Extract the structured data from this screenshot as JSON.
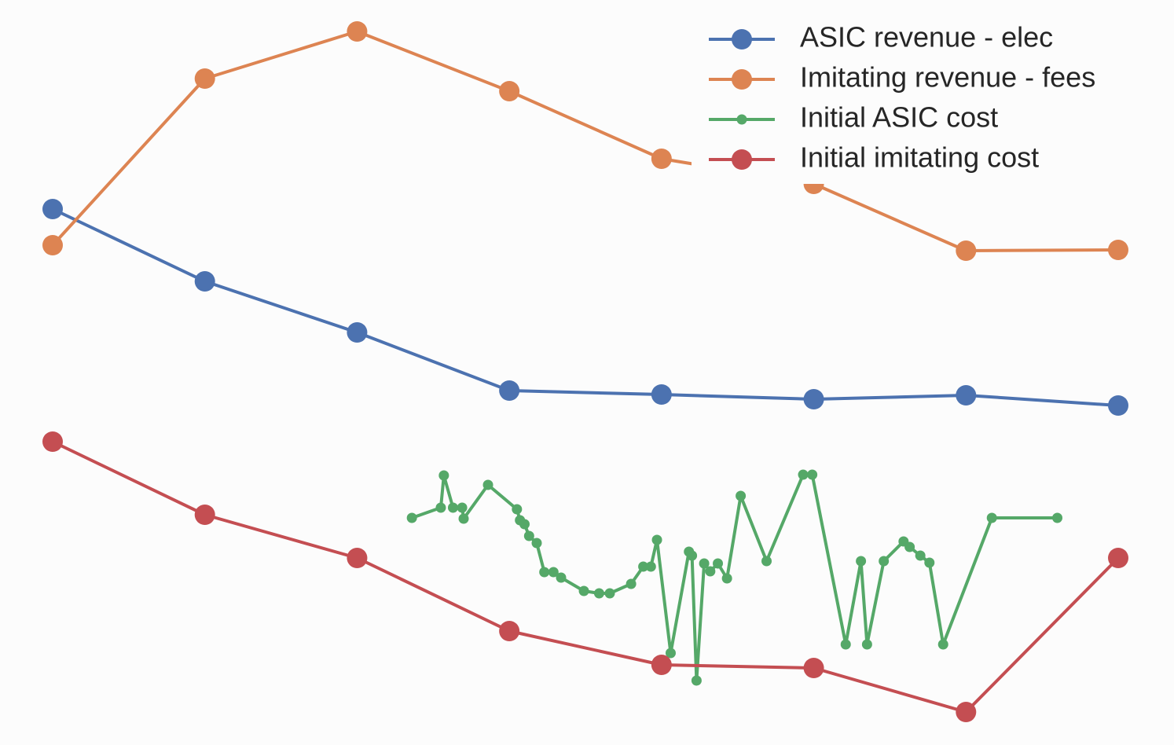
{
  "chart_data": {
    "type": "line",
    "x": [
      0,
      1,
      2,
      3,
      4,
      5,
      6,
      7
    ],
    "xlim": [
      0,
      7
    ],
    "ylim": [
      0,
      948
    ],
    "legend": "upper right",
    "grid": false,
    "series": [
      {
        "name": "ASIC revenue - elec",
        "color": "#4c72b0",
        "values": [
          682,
          590,
          525,
          451,
          446,
          440,
          445,
          432
        ]
      },
      {
        "name": "Imitating revenue - fees",
        "color": "#dd8452",
        "values": [
          636,
          848,
          908,
          832,
          746,
          714,
          629,
          630
        ]
      },
      {
        "name": "Initial ASIC cost",
        "color": "#55a868",
        "x": [
          2.36,
          2.55,
          2.57,
          2.63,
          2.69,
          2.7,
          2.86,
          3.05,
          3.07,
          3.1,
          3.13,
          3.18,
          3.23,
          3.29,
          3.34,
          3.49,
          3.59,
          3.66,
          3.8,
          3.88,
          3.93,
          3.97,
          4.06,
          4.18,
          4.2,
          4.23,
          4.28,
          4.32,
          4.37,
          4.43,
          4.52,
          4.69,
          4.93,
          4.99,
          5.21,
          5.31,
          5.35,
          5.46,
          5.59,
          5.63,
          5.7,
          5.76,
          5.85,
          6.17,
          6.6
        ],
        "values": [
          289,
          302,
          343,
          302,
          302,
          288,
          331,
          300,
          286,
          281,
          266,
          257,
          220,
          220,
          213,
          196,
          193,
          193,
          205,
          227,
          227,
          261,
          117,
          246,
          241,
          82,
          231,
          221,
          231,
          212,
          317,
          234,
          344,
          344,
          128,
          234,
          128,
          234,
          259,
          252,
          241,
          232,
          128,
          289,
          289
        ]
      },
      {
        "name": "Initial imitating cost",
        "color": "#c44e52",
        "values": [
          386,
          293,
          238,
          145,
          102,
          98,
          42,
          238
        ]
      }
    ]
  }
}
